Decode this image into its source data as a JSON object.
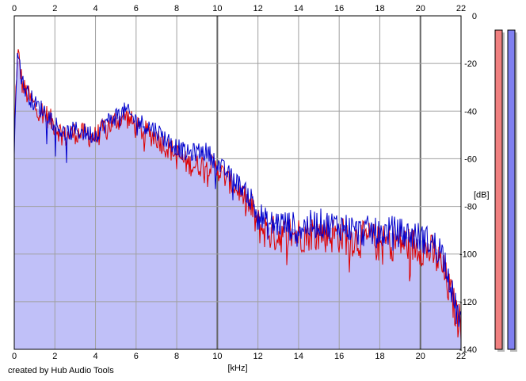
{
  "chart_data": {
    "type": "area",
    "title": "",
    "xlabel": "[kHz]",
    "ylabel": "[dB]",
    "xlim": [
      0,
      22
    ],
    "ylim": [
      -140,
      0
    ],
    "x_ticks": [
      0,
      2,
      4,
      6,
      8,
      10,
      12,
      14,
      16,
      18,
      20,
      22
    ],
    "y_ticks": [
      0,
      -20,
      -40,
      -60,
      -80,
      -100,
      -120,
      -140
    ],
    "grid": true,
    "x_ticks_top": true,
    "series": [
      {
        "color": "#0000cc",
        "x": [
          0,
          0.1,
          0.2,
          0.3,
          0.4,
          0.5,
          0.7,
          1.0,
          1.5,
          2.0,
          2.5,
          3.0,
          3.5,
          4.0,
          4.5,
          5.0,
          5.5,
          6.0,
          6.5,
          7.0,
          7.5,
          8.0,
          8.5,
          9.0,
          9.5,
          10.0,
          10.5,
          11.0,
          11.5,
          12.0,
          12.5,
          13.0,
          13.5,
          14.0,
          14.5,
          15.0,
          15.5,
          16.0,
          16.5,
          17.0,
          17.5,
          18.0,
          18.5,
          19.0,
          19.5,
          20.0,
          20.5,
          21.0,
          21.3,
          21.6,
          21.8,
          22.0
        ],
        "values": [
          -55,
          -24,
          -15,
          -22,
          -28,
          -30,
          -33,
          -37,
          -40,
          -45,
          -50,
          -48,
          -49,
          -50,
          -45,
          -42,
          -40,
          -44,
          -46,
          -48,
          -52,
          -55,
          -58,
          -57,
          -57,
          -62,
          -66,
          -70,
          -75,
          -83,
          -88,
          -87,
          -88,
          -89,
          -88,
          -87,
          -88,
          -88,
          -89,
          -91,
          -90,
          -92,
          -90,
          -91,
          -92,
          -93,
          -95,
          -98,
          -105,
          -118,
          -125,
          -127
        ]
      },
      {
        "color": "#dd0000",
        "x": [
          0,
          0.1,
          0.2,
          0.3,
          0.4,
          0.5,
          0.7,
          1.0,
          1.5,
          2.0,
          2.5,
          3.0,
          3.5,
          4.0,
          4.5,
          5.0,
          5.5,
          6.0,
          6.5,
          7.0,
          7.5,
          8.0,
          8.5,
          9.0,
          9.5,
          10.0,
          10.5,
          11.0,
          11.5,
          12.0,
          12.5,
          13.0,
          13.5,
          14.0,
          14.5,
          15.0,
          15.5,
          16.0,
          16.5,
          17.0,
          17.5,
          18.0,
          18.5,
          19.0,
          19.5,
          20.0,
          20.5,
          21.0,
          21.3,
          21.6,
          21.8,
          22.0
        ],
        "values": [
          -55,
          -25,
          -16,
          -23,
          -29,
          -31,
          -34,
          -38,
          -41,
          -46,
          -51,
          -49,
          -50,
          -51,
          -47,
          -44,
          -42,
          -47,
          -49,
          -51,
          -55,
          -58,
          -62,
          -63,
          -62,
          -64,
          -69,
          -73,
          -78,
          -88,
          -91,
          -92,
          -91,
          -92,
          -91,
          -91,
          -92,
          -92,
          -93,
          -94,
          -94,
          -96,
          -95,
          -95,
          -96,
          -97,
          -99,
          -104,
          -112,
          -120,
          -127,
          -129
        ]
      }
    ],
    "fill_color": "#c0c0f8",
    "level_meters": [
      {
        "color": "#f08080",
        "level_db": 0
      },
      {
        "color": "#8080f0",
        "level_db": 0
      }
    ]
  },
  "footer": {
    "credit": "created by Hub Audio Tools"
  }
}
